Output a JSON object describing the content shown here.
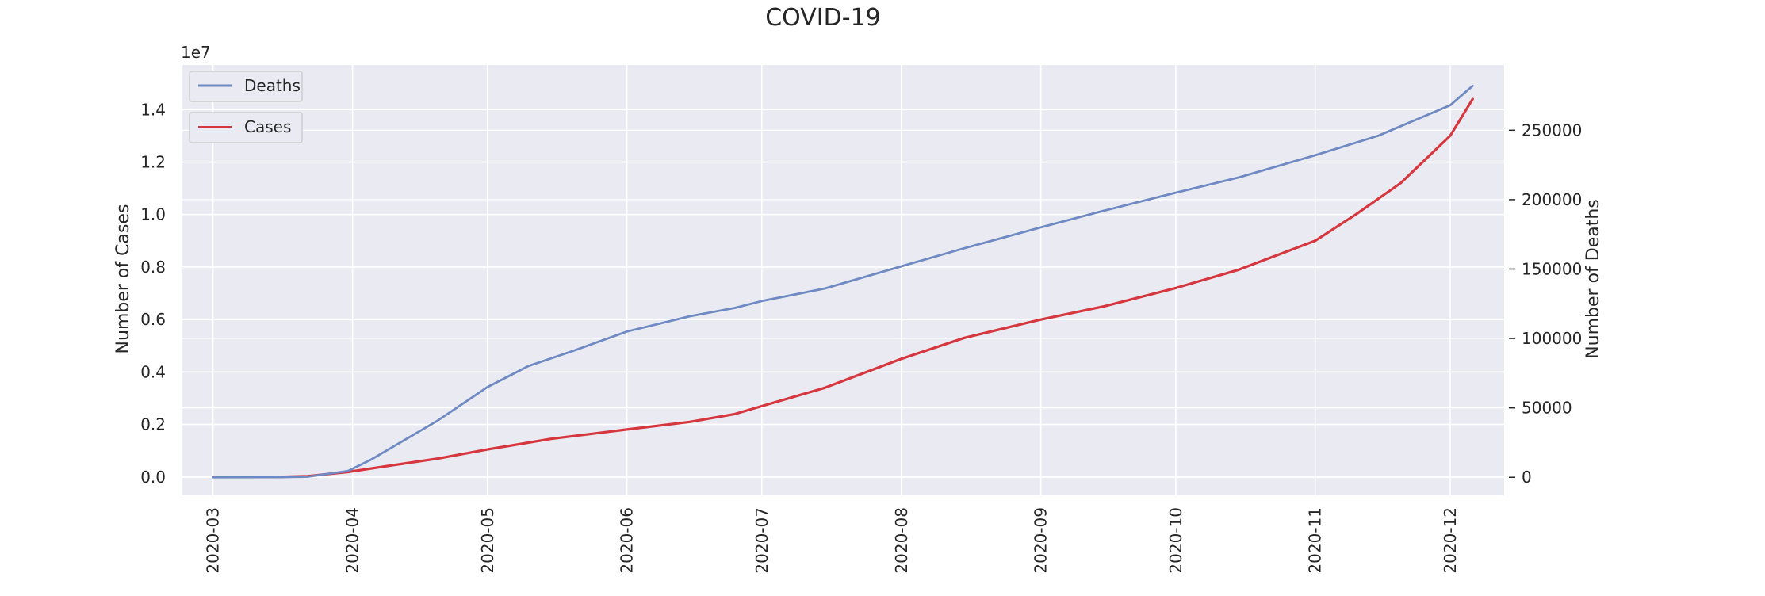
{
  "chart_data": {
    "type": "line",
    "title": "COVID-19",
    "x_tick_labels": [
      "2020-03",
      "2020-04",
      "2020-05",
      "2020-06",
      "2020-07",
      "2020-08",
      "2020-09",
      "2020-10",
      "2020-11",
      "2020-12"
    ],
    "x_range": [
      "2020-02-23",
      "2020-12-13"
    ],
    "left_axis": {
      "label": "Number of Cases",
      "scale_label": "1e7",
      "range": [
        -0.07,
        1.57
      ],
      "ticks": [
        0.0,
        0.2,
        0.4,
        0.6,
        0.8,
        1.0,
        1.2,
        1.4
      ],
      "tick_labels": [
        "0.0",
        "0.2",
        "0.4",
        "0.6",
        "0.8",
        "1.0",
        "1.2",
        "1.4"
      ]
    },
    "right_axis": {
      "label": "Number of Deaths",
      "range": [
        -13000,
        297000
      ],
      "ticks": [
        0,
        50000,
        100000,
        150000,
        200000,
        250000
      ],
      "tick_labels": [
        "0",
        "50000",
        "100000",
        "150000",
        "200000",
        "250000"
      ]
    },
    "grid": true,
    "legend": [
      {
        "name": "Deaths",
        "color": "#6f89c3",
        "axis": "right",
        "placement": "top-left"
      },
      {
        "name": "Cases",
        "color": "#d6363e",
        "axis": "left",
        "placement": "top-left"
      }
    ],
    "series": [
      {
        "name": "Deaths",
        "axis": "right",
        "color": "#6f89c3",
        "x": [
          "2020-03-01",
          "2020-03-15",
          "2020-03-22",
          "2020-03-31",
          "2020-04-05",
          "2020-04-10",
          "2020-04-20",
          "2020-05-01",
          "2020-05-10",
          "2020-05-20",
          "2020-06-01",
          "2020-06-15",
          "2020-06-25",
          "2020-07-01",
          "2020-07-15",
          "2020-08-01",
          "2020-08-15",
          "2020-09-01",
          "2020-09-15",
          "2020-10-01",
          "2020-10-15",
          "2020-11-01",
          "2020-11-15",
          "2020-12-01",
          "2020-12-06"
        ],
        "values": [
          0,
          100,
          400,
          4500,
          12500,
          22000,
          41000,
          65000,
          80000,
          91000,
          105000,
          116000,
          122000,
          127000,
          136000,
          152000,
          165000,
          180000,
          192000,
          205000,
          216000,
          232000,
          246000,
          268000,
          282000
        ]
      },
      {
        "name": "Cases",
        "axis": "left",
        "color": "#d6363e",
        "x": [
          "2020-03-01",
          "2020-03-15",
          "2020-03-22",
          "2020-03-31",
          "2020-04-10",
          "2020-04-20",
          "2020-05-01",
          "2020-05-15",
          "2020-06-01",
          "2020-06-15",
          "2020-06-25",
          "2020-07-01",
          "2020-07-15",
          "2020-08-01",
          "2020-08-15",
          "2020-09-01",
          "2020-09-15",
          "2020-10-01",
          "2020-10-15",
          "2020-11-01",
          "2020-11-10",
          "2020-11-20",
          "2020-12-01",
          "2020-12-06"
        ],
        "values": [
          0.0,
          0.0,
          0.003,
          0.019,
          0.045,
          0.07,
          0.105,
          0.145,
          0.181,
          0.21,
          0.24,
          0.27,
          0.34,
          0.45,
          0.53,
          0.6,
          0.65,
          0.72,
          0.79,
          0.9,
          1.0,
          1.12,
          1.3,
          1.44
        ]
      }
    ]
  }
}
